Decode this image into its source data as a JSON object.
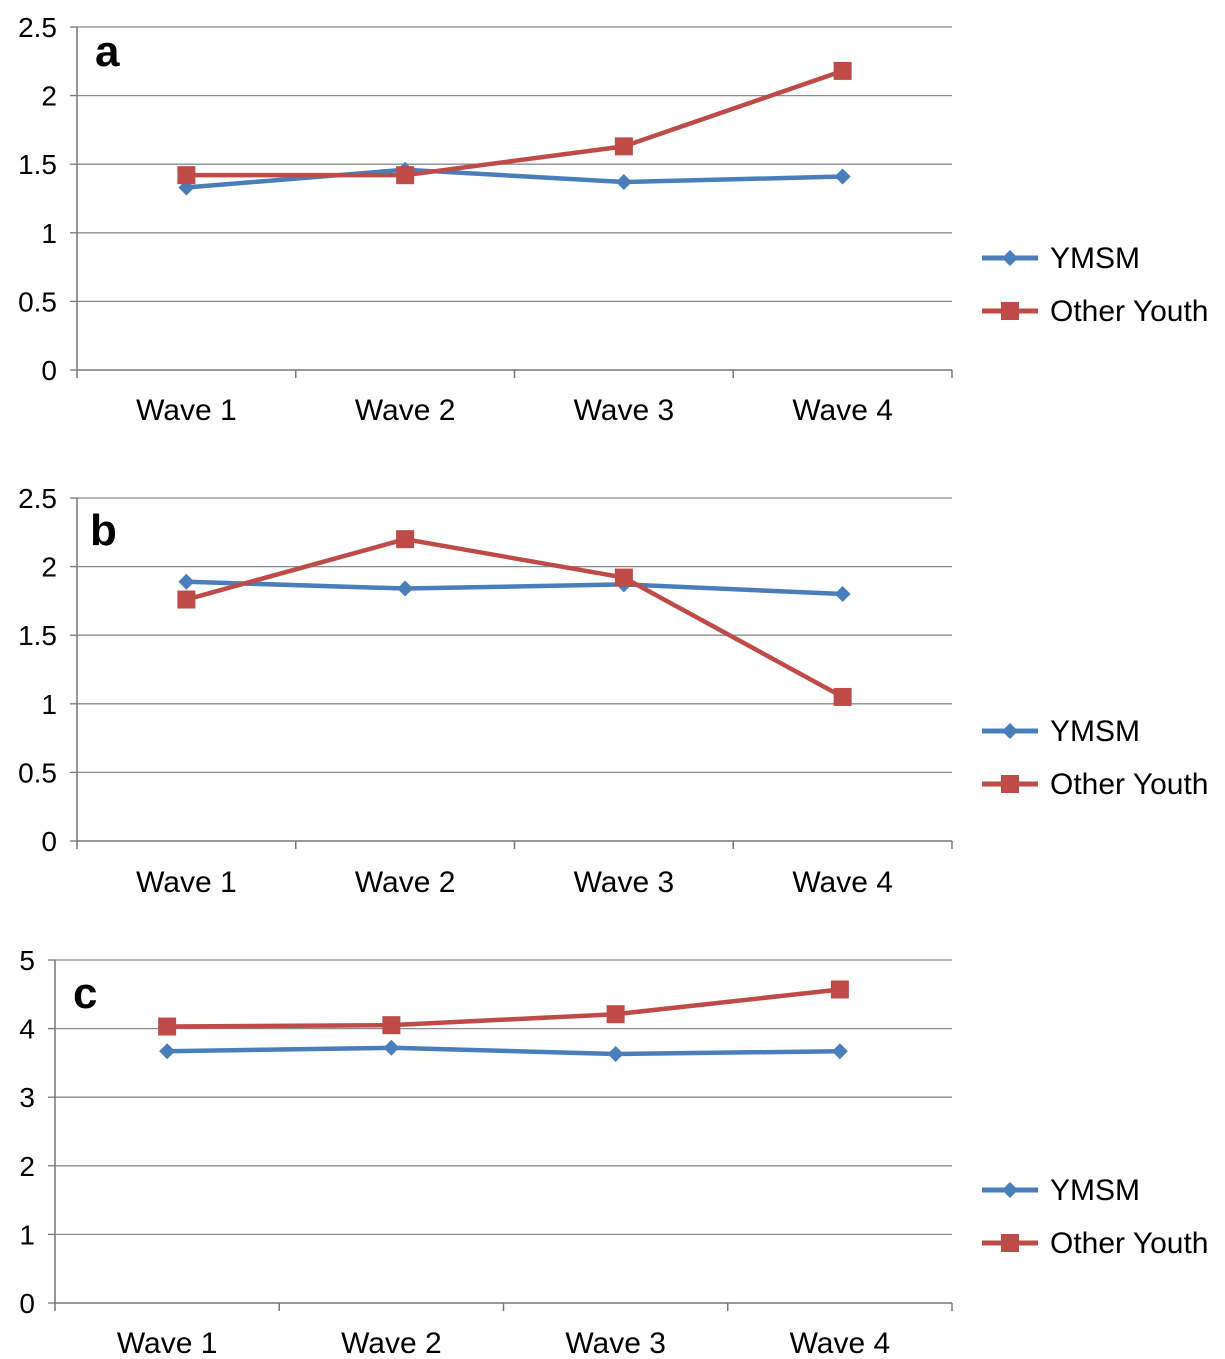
{
  "chart_data": [
    {
      "type": "line",
      "panel_label": "a",
      "categories": [
        "Wave 1",
        "Wave 2",
        "Wave 3",
        "Wave 4"
      ],
      "yticks": [
        "0",
        "0.5",
        "1",
        "1.5",
        "2",
        "2.5"
      ],
      "ylim": [
        0,
        2.5
      ],
      "grid": true,
      "legend": "right",
      "series": [
        {
          "name": "YMSM",
          "color": "#4a7ebb",
          "marker": "diamond",
          "values": [
            1.33,
            1.46,
            1.37,
            1.41
          ]
        },
        {
          "name": "Other Youth",
          "color": "#be4b48",
          "marker": "square",
          "values": [
            1.42,
            1.42,
            1.63,
            2.18
          ]
        }
      ]
    },
    {
      "type": "line",
      "panel_label": "b",
      "categories": [
        "Wave 1",
        "Wave 2",
        "Wave 3",
        "Wave 4"
      ],
      "yticks": [
        "0",
        "0.5",
        "1",
        "1.5",
        "2",
        "2.5"
      ],
      "ylim": [
        0,
        2.5
      ],
      "grid": true,
      "legend": "right",
      "series": [
        {
          "name": "YMSM",
          "color": "#4a7ebb",
          "marker": "diamond",
          "values": [
            1.89,
            1.84,
            1.87,
            1.8
          ]
        },
        {
          "name": "Other Youth",
          "color": "#be4b48",
          "marker": "square",
          "values": [
            1.76,
            2.2,
            1.92,
            1.05
          ]
        }
      ]
    },
    {
      "type": "line",
      "panel_label": "c",
      "categories": [
        "Wave 1",
        "Wave 2",
        "Wave 3",
        "Wave 4"
      ],
      "yticks": [
        "0",
        "1",
        "2",
        "3",
        "4",
        "5"
      ],
      "ylim": [
        0,
        5
      ],
      "grid": true,
      "legend": "right",
      "series": [
        {
          "name": "YMSM",
          "color": "#4a7ebb",
          "marker": "diamond",
          "values": [
            3.67,
            3.72,
            3.63,
            3.67
          ]
        },
        {
          "name": "Other Youth",
          "color": "#be4b48",
          "marker": "square",
          "values": [
            4.03,
            4.05,
            4.21,
            4.57
          ]
        }
      ]
    }
  ]
}
